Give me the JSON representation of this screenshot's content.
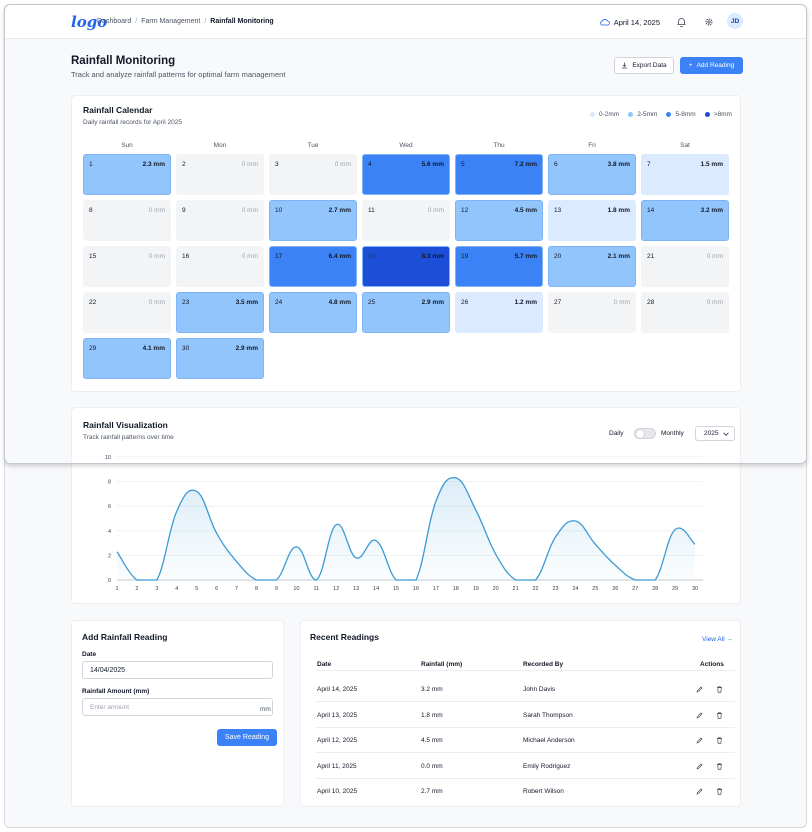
{
  "header": {
    "logo": "logo",
    "breadcrumb": [
      "Dashboard",
      "Farm Management",
      "Rainfall Monitoring"
    ],
    "date": "April 14, 2025",
    "avatar": "JD"
  },
  "page": {
    "title": "Rainfall Monitoring",
    "subtitle": "Track and analyze rainfall patterns for optimal farm management",
    "export_label": "Export Data",
    "add_label": "Add Reading"
  },
  "calendar": {
    "title": "Rainfall Calendar",
    "subtitle": "Daily rainfall records for April 2025",
    "legend": [
      {
        "label": "0-2mm",
        "color": "#dbeafe"
      },
      {
        "label": "2-5mm",
        "color": "#93c5fd"
      },
      {
        "label": "5-8mm",
        "color": "#3b82f6"
      },
      {
        "label": ">8mm",
        "color": "#1d4ed8"
      }
    ],
    "weekdays": [
      "Sun",
      "Mon",
      "Tue",
      "Wed",
      "Thu",
      "Fri",
      "Sat"
    ],
    "days": [
      {
        "day": "1",
        "value": "2.3 mm"
      },
      {
        "day": "2",
        "value": "0 mm"
      },
      {
        "day": "3",
        "value": "0 mm"
      },
      {
        "day": "4",
        "value": "5.6 mm"
      },
      {
        "day": "5",
        "value": "7.2 mm"
      },
      {
        "day": "6",
        "value": "3.8 mm"
      },
      {
        "day": "7",
        "value": "1.5 mm"
      },
      {
        "day": "8",
        "value": "0 mm"
      },
      {
        "day": "9",
        "value": "0 mm"
      },
      {
        "day": "10",
        "value": "2.7 mm"
      },
      {
        "day": "11",
        "value": "0 mm"
      },
      {
        "day": "12",
        "value": "4.5 mm"
      },
      {
        "day": "13",
        "value": "1.8 mm"
      },
      {
        "day": "14",
        "value": "3.2 mm"
      },
      {
        "day": "15",
        "value": "0 mm"
      },
      {
        "day": "16",
        "value": "0 mm"
      },
      {
        "day": "17",
        "value": "6.4 mm"
      },
      {
        "day": "18",
        "value": "8.3 mm"
      },
      {
        "day": "19",
        "value": "5.7 mm"
      },
      {
        "day": "20",
        "value": "2.1 mm"
      },
      {
        "day": "21",
        "value": "0 mm"
      },
      {
        "day": "22",
        "value": "0 mm"
      },
      {
        "day": "23",
        "value": "3.5 mm"
      },
      {
        "day": "24",
        "value": "4.8 mm"
      },
      {
        "day": "25",
        "value": "2.9 mm"
      },
      {
        "day": "26",
        "value": "1.2 mm"
      },
      {
        "day": "27",
        "value": "0 mm"
      },
      {
        "day": "28",
        "value": "0 mm"
      },
      {
        "day": "29",
        "value": "4.1 mm"
      },
      {
        "day": "30",
        "value": "2.9 mm"
      }
    ]
  },
  "visualization": {
    "title": "Rainfall Visualization",
    "subtitle": "Track rainfall patterns over time",
    "toggle_left": "Daily",
    "toggle_right": "Monthly",
    "year": "2025"
  },
  "chart_data": {
    "type": "area",
    "x": [
      1,
      2,
      3,
      4,
      5,
      6,
      7,
      8,
      9,
      10,
      11,
      12,
      13,
      14,
      15,
      16,
      17,
      18,
      19,
      20,
      21,
      22,
      23,
      24,
      25,
      26,
      27,
      28,
      29,
      30
    ],
    "values": [
      2.3,
      0,
      0,
      5.6,
      7.2,
      3.8,
      1.5,
      0,
      0,
      2.7,
      0,
      4.5,
      1.8,
      3.2,
      0,
      0,
      6.4,
      8.3,
      5.7,
      2.1,
      0,
      0,
      3.5,
      4.8,
      2.9,
      1.2,
      0,
      0,
      4.1,
      2.9
    ],
    "yticks": [
      "0",
      "2",
      "4",
      "6",
      "8",
      "10"
    ],
    "ylim": [
      0,
      10
    ],
    "xlim": [
      1,
      30
    ],
    "grid": true,
    "color": "#3b9bd3",
    "xlabel": "",
    "ylabel": ""
  },
  "form": {
    "title": "Add Rainfall Reading",
    "date_label": "Date",
    "date_value": "14/04/2025",
    "amount_label": "Rainfall Amount (mm)",
    "amount_placeholder": "Enter amount",
    "unit": "mm",
    "save_label": "Save Reading"
  },
  "recent": {
    "title": "Recent Readings",
    "view_all": "View All",
    "columns": [
      "Date",
      "Rainfall (mm)",
      "Recorded By",
      "Actions"
    ],
    "rows": [
      {
        "date": "April 14, 2025",
        "rainfall": "3.2 mm",
        "by": "John Davis"
      },
      {
        "date": "April 13, 2025",
        "rainfall": "1.8 mm",
        "by": "Sarah Thompson"
      },
      {
        "date": "April 12, 2025",
        "rainfall": "4.5 mm",
        "by": "Michael Anderson"
      },
      {
        "date": "April 11, 2025",
        "rainfall": "0.0 mm",
        "by": "Emily Rodriguez"
      },
      {
        "date": "April 10, 2025",
        "rainfall": "2.7 mm",
        "by": "Robert Wilson"
      }
    ]
  }
}
